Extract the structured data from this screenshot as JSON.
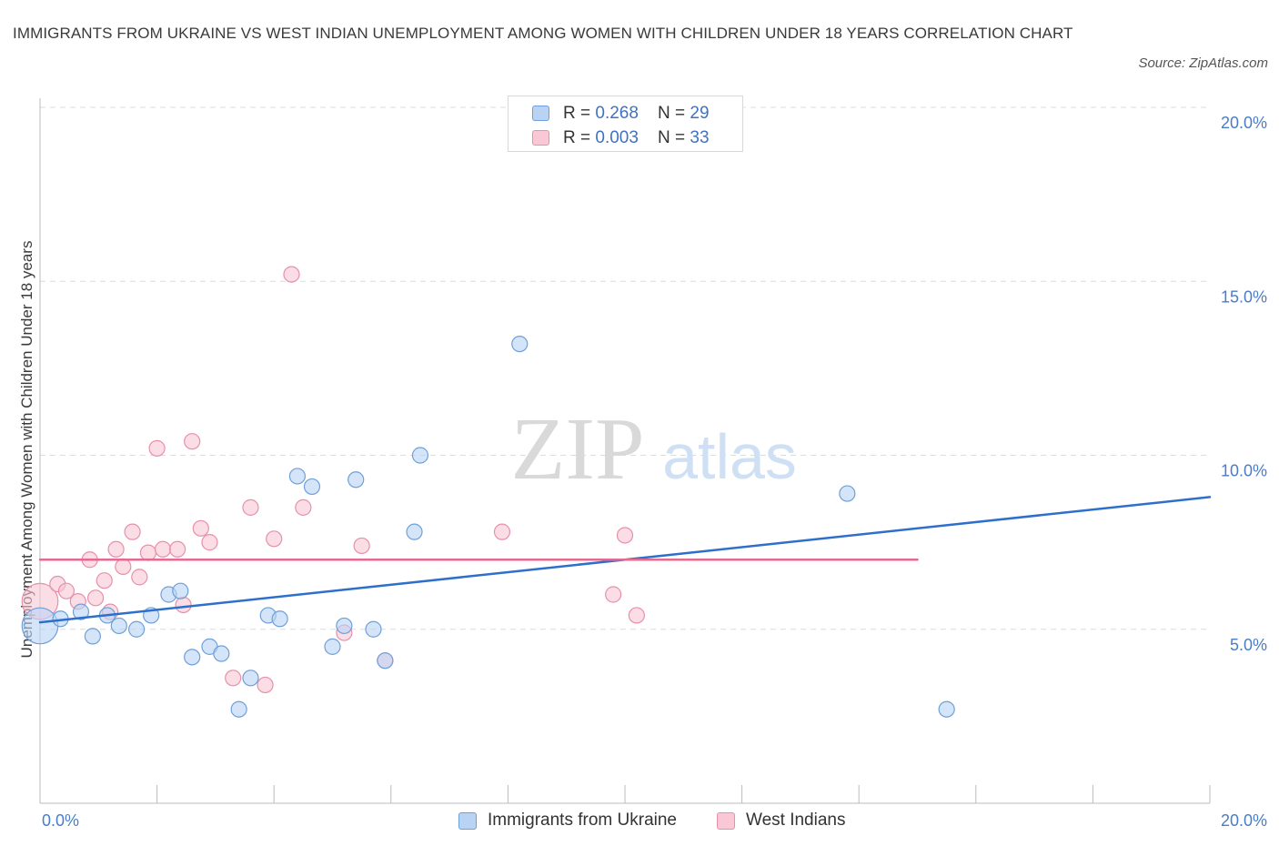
{
  "title": "IMMIGRANTS FROM UKRAINE VS WEST INDIAN UNEMPLOYMENT AMONG WOMEN WITH CHILDREN UNDER 18 YEARS CORRELATION CHART",
  "source": "Source: ZipAtlas.com",
  "watermark": {
    "zip": "ZIP",
    "atlas": "atlas"
  },
  "colors": {
    "ukraine_fill": "#b9d3f5",
    "ukraine_stroke": "#6f9fd8",
    "ukraine_line": "#2f6fcc",
    "west_fill": "#f9c7d6",
    "west_stroke": "#e88fab",
    "west_line": "#e56a92",
    "tick_text": "#4a7cc8",
    "grid": "#dcdcdc"
  },
  "stats": [
    {
      "r_label": "R = ",
      "r_value": "0.268",
      "n_label": "N = ",
      "n_value": "29",
      "series": "ukraine"
    },
    {
      "r_label": "R = ",
      "r_value": "0.003",
      "n_label": "N = ",
      "n_value": "33",
      "series": "west"
    }
  ],
  "chart_data": {
    "type": "scatter",
    "title": "IMMIGRANTS FROM UKRAINE VS WEST INDIAN UNEMPLOYMENT AMONG WOMEN WITH CHILDREN UNDER 18 YEARS CORRELATION CHART",
    "xlabel": "",
    "ylabel": "Unemployment Among Women with Children Under 18 years",
    "xlim": [
      0,
      20
    ],
    "ylim": [
      0,
      20
    ],
    "x_tick_labels": [
      "0.0%",
      "20.0%"
    ],
    "y_ticks": [
      {
        "value": 5,
        "label": "5.0%"
      },
      {
        "value": 10,
        "label": "10.0%"
      },
      {
        "value": 15,
        "label": "15.0%"
      },
      {
        "value": 20,
        "label": "20.0%"
      }
    ],
    "grid": true,
    "legend_position": "bottom",
    "series": [
      {
        "name": "Immigrants from Ukraine",
        "key": "ukraine",
        "points": [
          [
            0.0,
            5.1,
            1.5
          ],
          [
            0.35,
            5.3,
            1
          ],
          [
            0.7,
            5.5,
            1
          ],
          [
            0.9,
            4.8,
            1
          ],
          [
            1.15,
            5.4,
            1
          ],
          [
            1.35,
            5.1,
            1
          ],
          [
            1.65,
            5.0,
            1
          ],
          [
            1.9,
            5.4,
            1
          ],
          [
            2.2,
            6.0,
            1
          ],
          [
            2.4,
            6.1,
            1
          ],
          [
            2.6,
            4.2,
            1
          ],
          [
            2.9,
            4.5,
            1
          ],
          [
            3.1,
            4.3,
            1
          ],
          [
            3.4,
            2.7,
            1
          ],
          [
            3.6,
            3.6,
            1
          ],
          [
            3.9,
            5.4,
            1
          ],
          [
            4.1,
            5.3,
            1
          ],
          [
            4.4,
            9.4,
            1
          ],
          [
            4.65,
            9.1,
            1
          ],
          [
            5.0,
            4.5,
            1
          ],
          [
            5.2,
            5.1,
            1
          ],
          [
            5.4,
            9.3,
            1
          ],
          [
            5.7,
            5.0,
            1
          ],
          [
            5.9,
            4.1,
            1
          ],
          [
            6.4,
            7.8,
            1
          ],
          [
            6.5,
            10.0,
            1
          ],
          [
            8.2,
            13.2,
            1
          ],
          [
            13.8,
            8.9,
            1
          ],
          [
            15.5,
            2.7,
            1
          ]
        ],
        "trend": {
          "x": [
            0,
            20
          ],
          "y": [
            5.2,
            8.8
          ]
        }
      },
      {
        "name": "West Indians",
        "key": "west",
        "points": [
          [
            0.0,
            5.8,
            1.5
          ],
          [
            0.3,
            6.3,
            1
          ],
          [
            0.45,
            6.1,
            1
          ],
          [
            0.65,
            5.8,
            1
          ],
          [
            0.85,
            7.0,
            1
          ],
          [
            0.95,
            5.9,
            1
          ],
          [
            1.1,
            6.4,
            1
          ],
          [
            1.2,
            5.5,
            1
          ],
          [
            1.3,
            7.3,
            1
          ],
          [
            1.42,
            6.8,
            1
          ],
          [
            1.58,
            7.8,
            1
          ],
          [
            1.7,
            6.5,
            1
          ],
          [
            1.85,
            7.2,
            1
          ],
          [
            2.0,
            10.2,
            1
          ],
          [
            2.1,
            7.3,
            1
          ],
          [
            2.35,
            7.3,
            1
          ],
          [
            2.45,
            5.7,
            1
          ],
          [
            2.6,
            10.4,
            1
          ],
          [
            2.75,
            7.9,
            1
          ],
          [
            2.9,
            7.5,
            1
          ],
          [
            3.3,
            3.6,
            1
          ],
          [
            3.6,
            8.5,
            1
          ],
          [
            3.85,
            3.4,
            1
          ],
          [
            4.0,
            7.6,
            1
          ],
          [
            4.3,
            15.2,
            1
          ],
          [
            4.5,
            8.5,
            1
          ],
          [
            5.2,
            4.9,
            1
          ],
          [
            5.5,
            7.4,
            1
          ],
          [
            5.9,
            4.1,
            1
          ],
          [
            7.9,
            7.8,
            1
          ],
          [
            9.8,
            6.0,
            1
          ],
          [
            10.0,
            7.7,
            1
          ],
          [
            10.2,
            5.4,
            1
          ]
        ],
        "trend": {
          "x": [
            0,
            15
          ],
          "y": [
            7.0,
            7.0
          ]
        }
      }
    ]
  }
}
